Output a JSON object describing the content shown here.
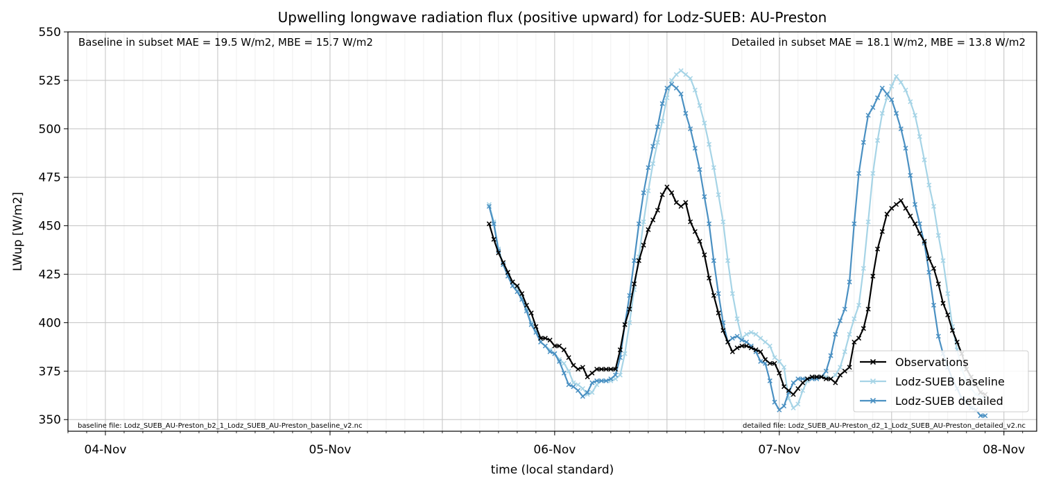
{
  "chart_data": {
    "type": "line",
    "title": "Upwelling longwave radiation flux (positive upward) for Lodz-SUEB: AU-Preston",
    "xlabel": "time (local standard)",
    "ylabel": "LWup [W/m2]",
    "xlim": [
      "2013-11-03T20:00",
      "2013-11-08T03:30"
    ],
    "ylim": [
      344,
      550
    ],
    "grid": true,
    "legend_position": "lower-right",
    "x_ticks": [
      {
        "value": "2013-11-04T00:00",
        "label": "04-Nov"
      },
      {
        "value": "2013-11-05T00:00",
        "label": "05-Nov"
      },
      {
        "value": "2013-11-06T00:00",
        "label": "06-Nov"
      },
      {
        "value": "2013-11-07T00:00",
        "label": "07-Nov"
      },
      {
        "value": "2013-11-08T00:00",
        "label": "08-Nov"
      }
    ],
    "y_ticks": [
      350,
      375,
      400,
      425,
      450,
      475,
      500,
      525,
      550
    ],
    "annotations": {
      "top_left": "Baseline in subset MAE = 19.5 W/m2, MBE = 15.7 W/m2",
      "top_right": "Detailed in subset MAE = 18.1 W/m2, MBE = 13.8 W/m2",
      "bottom_left": "baseline file: Lodz_SUEB_AU-Preston_b2_1_Lodz_SUEB_AU-Preston_baseline_v2.nc",
      "bottom_right": "detailed file: Lodz_SUEB_AU-Preston_d2_1_Lodz_SUEB_AU-Preston_detailed_v2.nc"
    },
    "series": [
      {
        "name": "Observations",
        "color": "#000000",
        "marker": "x",
        "x_start": "2013-11-05T17:00",
        "x_step_minutes": 30,
        "values": [
          451,
          443,
          436,
          431,
          426,
          421,
          419,
          415,
          409,
          405,
          398,
          392,
          392,
          391,
          388,
          388,
          386,
          382,
          378,
          376,
          377,
          372,
          374,
          376,
          376,
          376,
          376,
          376,
          386,
          399,
          407,
          420,
          432,
          440,
          448,
          453,
          458,
          466,
          470,
          467,
          462,
          460,
          462,
          452,
          447,
          442,
          435,
          423,
          414,
          405,
          396,
          390,
          385,
          387,
          388,
          388,
          387,
          386,
          385,
          381,
          379,
          379,
          374,
          367,
          365,
          363,
          366,
          369,
          371,
          372,
          372,
          372,
          371,
          371,
          369,
          373,
          375,
          377,
          390,
          392,
          397,
          407,
          424,
          438,
          447,
          456,
          459,
          461,
          463,
          459,
          455,
          451,
          446,
          442,
          433,
          428,
          420,
          410,
          404,
          396,
          390,
          384,
          376,
          372,
          368,
          364,
          363
        ]
      },
      {
        "name": "Lodz-SUEB baseline",
        "color": "#a6d4e6",
        "marker": "x",
        "x_start": "2013-11-05T17:00",
        "x_step_minutes": 30,
        "values": [
          461,
          452,
          438,
          430,
          426,
          421,
          418,
          413,
          407,
          400,
          396,
          390,
          388,
          386,
          384,
          381,
          379,
          375,
          369,
          368,
          366,
          363,
          364,
          368,
          370,
          370,
          370,
          371,
          373,
          384,
          400,
          417,
          434,
          452,
          468,
          482,
          493,
          504,
          516,
          525,
          528,
          530,
          528,
          526,
          520,
          512,
          503,
          492,
          480,
          466,
          452,
          432,
          415,
          402,
          392,
          394,
          395,
          394,
          392,
          390,
          388,
          382,
          380,
          377,
          361,
          356,
          358,
          365,
          370,
          372,
          372,
          372,
          372,
          371,
          373,
          377,
          385,
          394,
          402,
          409,
          428,
          452,
          477,
          494,
          508,
          516,
          522,
          527,
          524,
          520,
          514,
          507,
          496,
          484,
          471,
          460,
          445,
          432,
          415,
          398,
          386,
          376,
          370,
          366,
          363,
          362,
          361
        ]
      },
      {
        "name": "Lodz-SUEB detailed",
        "color": "#4a90c2",
        "marker": "x",
        "x_start": "2013-11-05T17:00",
        "x_step_minutes": 30,
        "values": [
          460,
          451,
          437,
          430,
          424,
          419,
          416,
          412,
          406,
          399,
          395,
          390,
          388,
          385,
          384,
          380,
          374,
          368,
          367,
          365,
          362,
          364,
          369,
          370,
          370,
          370,
          371,
          373,
          382,
          399,
          414,
          432,
          451,
          467,
          480,
          491,
          501,
          513,
          521,
          523,
          521,
          518,
          508,
          500,
          490,
          479,
          465,
          451,
          432,
          415,
          400,
          390,
          392,
          393,
          391,
          390,
          388,
          385,
          380,
          379,
          370,
          359,
          355,
          357,
          364,
          369,
          371,
          371,
          371,
          371,
          371,
          372,
          375,
          383,
          394,
          401,
          407,
          421,
          451,
          477,
          493,
          507,
          511,
          516,
          521,
          518,
          515,
          508,
          500,
          490,
          476,
          461,
          451,
          441,
          426,
          409,
          393,
          384,
          377,
          371,
          366,
          361,
          359,
          356,
          355,
          352,
          352
        ]
      }
    ]
  }
}
